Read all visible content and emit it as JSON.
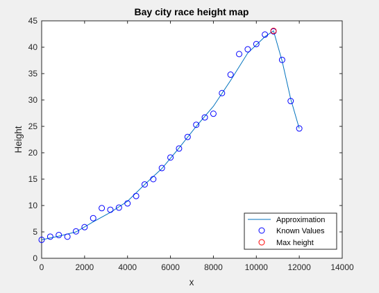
{
  "chart_data": {
    "type": "line",
    "title": "Bay city race height map",
    "xlabel": "x",
    "ylabel": "Height",
    "xlim": [
      0,
      14000
    ],
    "ylim": [
      0,
      45
    ],
    "xticks": [
      0,
      2000,
      4000,
      6000,
      8000,
      10000,
      12000,
      14000
    ],
    "yticks": [
      0,
      5,
      10,
      15,
      20,
      25,
      30,
      35,
      40,
      45
    ],
    "grid": false,
    "legend_position": "bottom-right",
    "colors": {
      "approximation": "#0072bd",
      "known_values": "#0000ff",
      "max_height": "#ff0000"
    },
    "series": [
      {
        "name": "Approximation",
        "style": "line",
        "x": [
          0,
          800,
          1600,
          2400,
          3200,
          4000,
          4800,
          5600,
          6400,
          7200,
          8000,
          8800,
          9600,
          10400,
          10800,
          11200,
          11600,
          12000
        ],
        "y": [
          3.5,
          4.2,
          5.0,
          6.9,
          8.7,
          10.8,
          14.0,
          17.0,
          20.9,
          25.0,
          28.8,
          33.7,
          38.9,
          42.0,
          43.1,
          37.4,
          30.2,
          24.6
        ]
      },
      {
        "name": "Known Values",
        "style": "markers",
        "marker": "circle",
        "x": [
          0,
          400,
          800,
          1200,
          1600,
          2000,
          2400,
          2800,
          3200,
          3600,
          4000,
          4400,
          4800,
          5200,
          5600,
          6000,
          6400,
          6800,
          7200,
          7600,
          8000,
          8400,
          8800,
          9200,
          9600,
          10000,
          10400,
          10800,
          11200,
          11600,
          12000
        ],
        "y": [
          3.5,
          4.1,
          4.4,
          4.1,
          5.1,
          5.9,
          7.6,
          9.5,
          9.2,
          9.6,
          10.4,
          11.8,
          14.0,
          15.0,
          17.1,
          19.1,
          20.8,
          23.0,
          25.3,
          26.7,
          27.4,
          31.3,
          34.8,
          38.7,
          39.6,
          40.6,
          42.4,
          43.0,
          37.6,
          29.8,
          24.6
        ]
      },
      {
        "name": "Max height",
        "style": "markers",
        "marker": "circle",
        "x": [
          10800
        ],
        "y": [
          43.1
        ]
      }
    ]
  }
}
